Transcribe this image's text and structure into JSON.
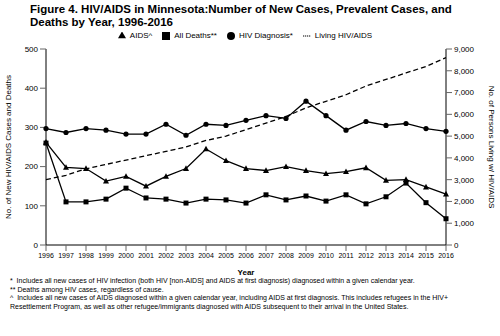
{
  "chart_data": {
    "type": "line",
    "title": "Figure 4. HIV/AIDS in Minnesota:Number of New Cases, Prevalent Cases, and Deaths by Year, 1996-2016",
    "x_label": "Year",
    "y_label": "No. of New HIV/AIDS Cases and Deaths",
    "y2_label": "No. of Persons Living w/ HIV/AIDS",
    "categories": [
      "1996",
      "1997",
      "1998",
      "1999",
      "2000",
      "2001",
      "2002",
      "2003",
      "2004",
      "2005",
      "2006",
      "2007",
      "2008",
      "2009",
      "2010",
      "2011",
      "2012",
      "2013",
      "2014",
      "2015",
      "2016"
    ],
    "series": [
      {
        "name": "HIV Diagnosis*",
        "color": "#000000",
        "marker": "circle",
        "line_style": "solid",
        "values": [
          297,
          287,
          297,
          293,
          283,
          283,
          308,
          280,
          308,
          305,
          318,
          330,
          323,
          367,
          330,
          293,
          315,
          305,
          310,
          297,
          290
        ]
      },
      {
        "name": "AIDS^",
        "color": "#000000",
        "marker": "triangle",
        "line_style": "solid",
        "values": [
          262,
          198,
          195,
          163,
          175,
          150,
          175,
          195,
          245,
          215,
          195,
          190,
          200,
          190,
          182,
          187,
          197,
          165,
          167,
          148,
          130
        ]
      },
      {
        "name": "All Deaths**",
        "color": "#000000",
        "marker": "square",
        "line_style": "solid",
        "values": [
          260,
          110,
          110,
          117,
          145,
          120,
          117,
          107,
          117,
          115,
          107,
          128,
          115,
          125,
          112,
          128,
          105,
          123,
          158,
          108,
          67
        ]
      },
      {
        "name": "Living HIV/AIDS",
        "color": "#000000",
        "marker": "none",
        "line_style": "dashed",
        "axis": "y2",
        "values": [
          3000,
          3200,
          3500,
          3700,
          3900,
          4100,
          4300,
          4500,
          4800,
          5000,
          5300,
          5600,
          5900,
          6300,
          6600,
          6900,
          7300,
          7600,
          7900,
          8200,
          8600
        ]
      }
    ],
    "ylim": [
      0,
      500
    ],
    "yticks": [
      0,
      100,
      200,
      300,
      400,
      500
    ],
    "y2lim": [
      0,
      9000
    ],
    "y2ticks": [
      0,
      {
        "value": 1000,
        "label": "1,000"
      },
      {
        "value": 2000,
        "label": "2,000"
      },
      {
        "value": 3000,
        "label": "3,000"
      },
      {
        "value": 4000,
        "label": "4,000"
      },
      {
        "value": 5000,
        "label": "5,000"
      },
      {
        "value": 6000,
        "label": "6,000"
      },
      {
        "value": 7000,
        "label": "7,000"
      },
      {
        "value": 8000,
        "label": "8,000"
      },
      {
        "value": 9000,
        "label": "9,000"
      }
    ],
    "grid": false,
    "legend": "top",
    "footnotes": [
      "*  Includes all new cases of HIV infection (both HIV [non-AIDS] and AIDS at first diagnosis) diagnosed within a given calendar year.",
      "** Deaths among HIV cases, regardless of cause.",
      "^  Includes all new cases of AIDS diagnosed within a given calendar year, including AIDS at first diagnosis. This includes refugees in the HIV+ Resettlement Program, as well as other refugee/immigrants diagnosed with AIDS subsequent to their arrival in the United States."
    ]
  }
}
